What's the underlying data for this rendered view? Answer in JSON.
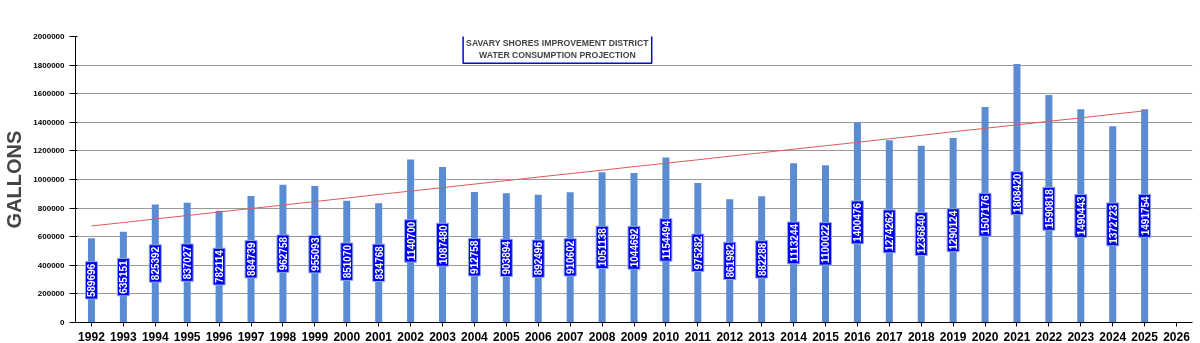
{
  "chart_data": {
    "type": "bar",
    "title": "SAVARY SHORES IMPROVEMENT DISTRICT",
    "subtitle": "WATER CONSUMPTION PROJECTION",
    "ylabel": "GALLONS",
    "categories": [
      "1992",
      "1993",
      "1994",
      "1995",
      "1996",
      "1997",
      "1998",
      "1999",
      "2000",
      "2001",
      "2002",
      "2003",
      "2004",
      "2005",
      "2006",
      "2007",
      "2008",
      "2009",
      "2010",
      "2011",
      "2012",
      "2013",
      "2014",
      "2015",
      "2016",
      "2017",
      "2018",
      "2019",
      "2020",
      "2021",
      "2022",
      "2023",
      "2024",
      "2025",
      "2026"
    ],
    "series": [
      {
        "color": "#5b8bd3",
        "values": [
          589696,
          635151,
          825392,
          837027,
          782114,
          884739,
          962758,
          955093,
          851070,
          834768,
          1140700,
          1087480,
          912758,
          903894,
          892496,
          910602,
          1051138,
          1044692,
          1154494,
          975282,
          861982,
          882288,
          1113244,
          1100022,
          1400476,
          1274262,
          1236840,
          1290124,
          1507176,
          1808420,
          1590818,
          1490443,
          1372723,
          1491754,
          null
        ],
        "value_labels": [
          "589696",
          "635151",
          "825392",
          "837027",
          "782114",
          "884739",
          "962758",
          "955093",
          "851070",
          "834768",
          "1140700",
          "1087480",
          "912758",
          "903894",
          "892496",
          "910602",
          "1051138",
          "1044692",
          "1154494",
          "975282",
          "861982",
          "882288",
          "1113244",
          "1100022",
          "1400476",
          "1274262",
          "1236840",
          "1290124",
          "1507176",
          "1808420",
          "1590818",
          "1490443",
          "1372723",
          "1491754",
          null
        ]
      },
      {
        "type": "line",
        "color": "#e05a5a",
        "values": [
          675000,
          699000,
          724000,
          748000,
          773000,
          797000,
          821000,
          846000,
          870000,
          895000,
          919000,
          943000,
          968000,
          992000,
          1017000,
          1041000,
          1065000,
          1090000,
          1114000,
          1138000,
          1163000,
          1187000,
          1212000,
          1236000,
          1260000,
          1285000,
          1309000,
          1334000,
          1358000,
          1382000,
          1407000,
          1431000,
          1456000,
          1480000,
          null
        ]
      }
    ],
    "ylim": [
      0,
      2000000
    ],
    "yticks": [
      0,
      200000,
      400000,
      600000,
      800000,
      1000000,
      1200000,
      1400000,
      1600000,
      1800000,
      2000000
    ],
    "grid": "y"
  }
}
